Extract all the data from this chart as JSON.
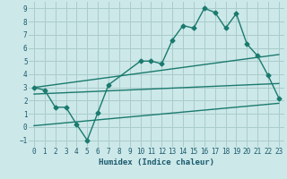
{
  "xlabel": "Humidex (Indice chaleur)",
  "xlim": [
    -0.5,
    23.5
  ],
  "ylim": [
    -1.5,
    9.5
  ],
  "xticks": [
    0,
    1,
    2,
    3,
    4,
    5,
    6,
    7,
    8,
    9,
    10,
    11,
    12,
    13,
    14,
    15,
    16,
    17,
    18,
    19,
    20,
    21,
    22,
    23
  ],
  "yticks": [
    -1,
    0,
    1,
    2,
    3,
    4,
    5,
    6,
    7,
    8,
    9
  ],
  "background_color": "#cce8e8",
  "grid_color": "#aacccc",
  "line_color": "#1a7a6e",
  "line1_x": [
    0,
    1,
    2,
    3,
    4,
    5,
    6,
    7,
    10,
    11,
    12,
    13,
    14,
    15,
    16,
    17,
    18,
    19,
    20,
    21,
    22,
    23
  ],
  "line1_y": [
    3,
    2.8,
    1.5,
    1.5,
    0.2,
    -1,
    1.1,
    3.2,
    5,
    5,
    4.8,
    6.6,
    7.7,
    7.5,
    9,
    8.7,
    7.5,
    8.6,
    6.3,
    5.4,
    3.9,
    2.2
  ],
  "line2_x": [
    0,
    23
  ],
  "line2_y": [
    3,
    5.5
  ],
  "line3_x": [
    0,
    23
  ],
  "line3_y": [
    2.5,
    3.3
  ],
  "line4_x": [
    0,
    23
  ],
  "line4_y": [
    0.1,
    1.8
  ],
  "marker": "D",
  "markersize": 2.5,
  "linewidth": 1.0
}
